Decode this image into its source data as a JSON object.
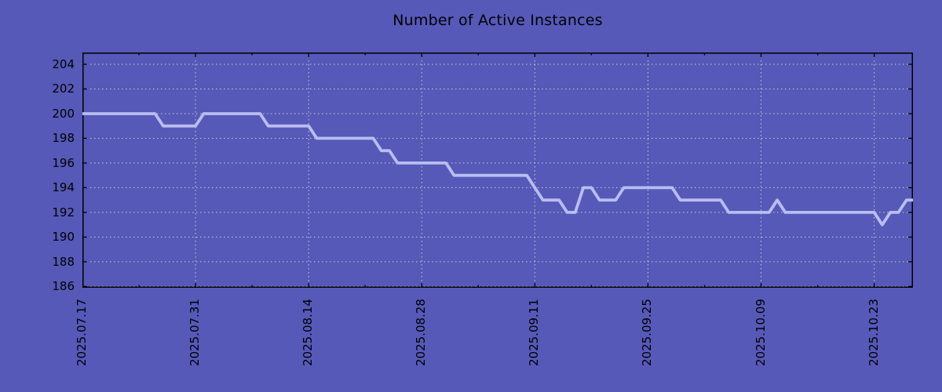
{
  "colors": {
    "background": "#5659b8",
    "line": "#b9bdf0",
    "grid": "#cccccc",
    "axis": "#000000",
    "text": "#000000"
  },
  "chart_data": {
    "type": "line",
    "title": "Number of Active Instances",
    "xlabel": "",
    "ylabel": "",
    "legend": "none",
    "grid": "dotted",
    "x_unit": "days since 2025.07.17 (daily samples)",
    "x_start_date": "2025.07.17",
    "x_tick_labels": [
      "2025.07.17",
      "2025.07.31",
      "2025.08.14",
      "2025.08.28",
      "2025.09.11",
      "2025.09.25",
      "2025.10.09",
      "2025.10.23"
    ],
    "x_tick_days": [
      0,
      14,
      28,
      42,
      56,
      70,
      84,
      98
    ],
    "x_minor_tick_days": [
      7,
      21,
      35,
      49,
      63,
      77,
      91
    ],
    "xlim_days": [
      0,
      102.8
    ],
    "y_ticks": [
      186,
      188,
      190,
      192,
      194,
      196,
      198,
      200,
      202,
      204
    ],
    "ylim": [
      185.9,
      204.95
    ],
    "values": [
      200,
      200,
      200,
      200,
      200,
      200,
      200,
      200,
      200,
      200,
      199,
      199,
      199,
      199,
      199,
      200,
      200,
      200,
      200,
      200,
      200,
      200,
      200,
      199,
      199,
      199,
      199,
      199,
      199,
      198,
      198,
      198,
      198,
      198,
      198,
      198,
      198,
      197,
      197,
      196,
      196,
      196,
      196,
      196,
      196,
      196,
      195,
      195,
      195,
      195,
      195,
      195,
      195,
      195,
      195,
      195,
      194,
      193,
      193,
      193,
      192,
      192,
      194,
      194,
      193,
      193,
      193,
      194,
      194,
      194,
      194,
      194,
      194,
      194,
      193,
      193,
      193,
      193,
      193,
      193,
      192,
      192,
      192,
      192,
      192,
      192,
      193,
      192,
      192,
      192,
      192,
      192,
      192,
      192,
      192,
      192,
      192,
      192,
      192,
      191,
      192,
      192,
      193,
      193
    ]
  }
}
